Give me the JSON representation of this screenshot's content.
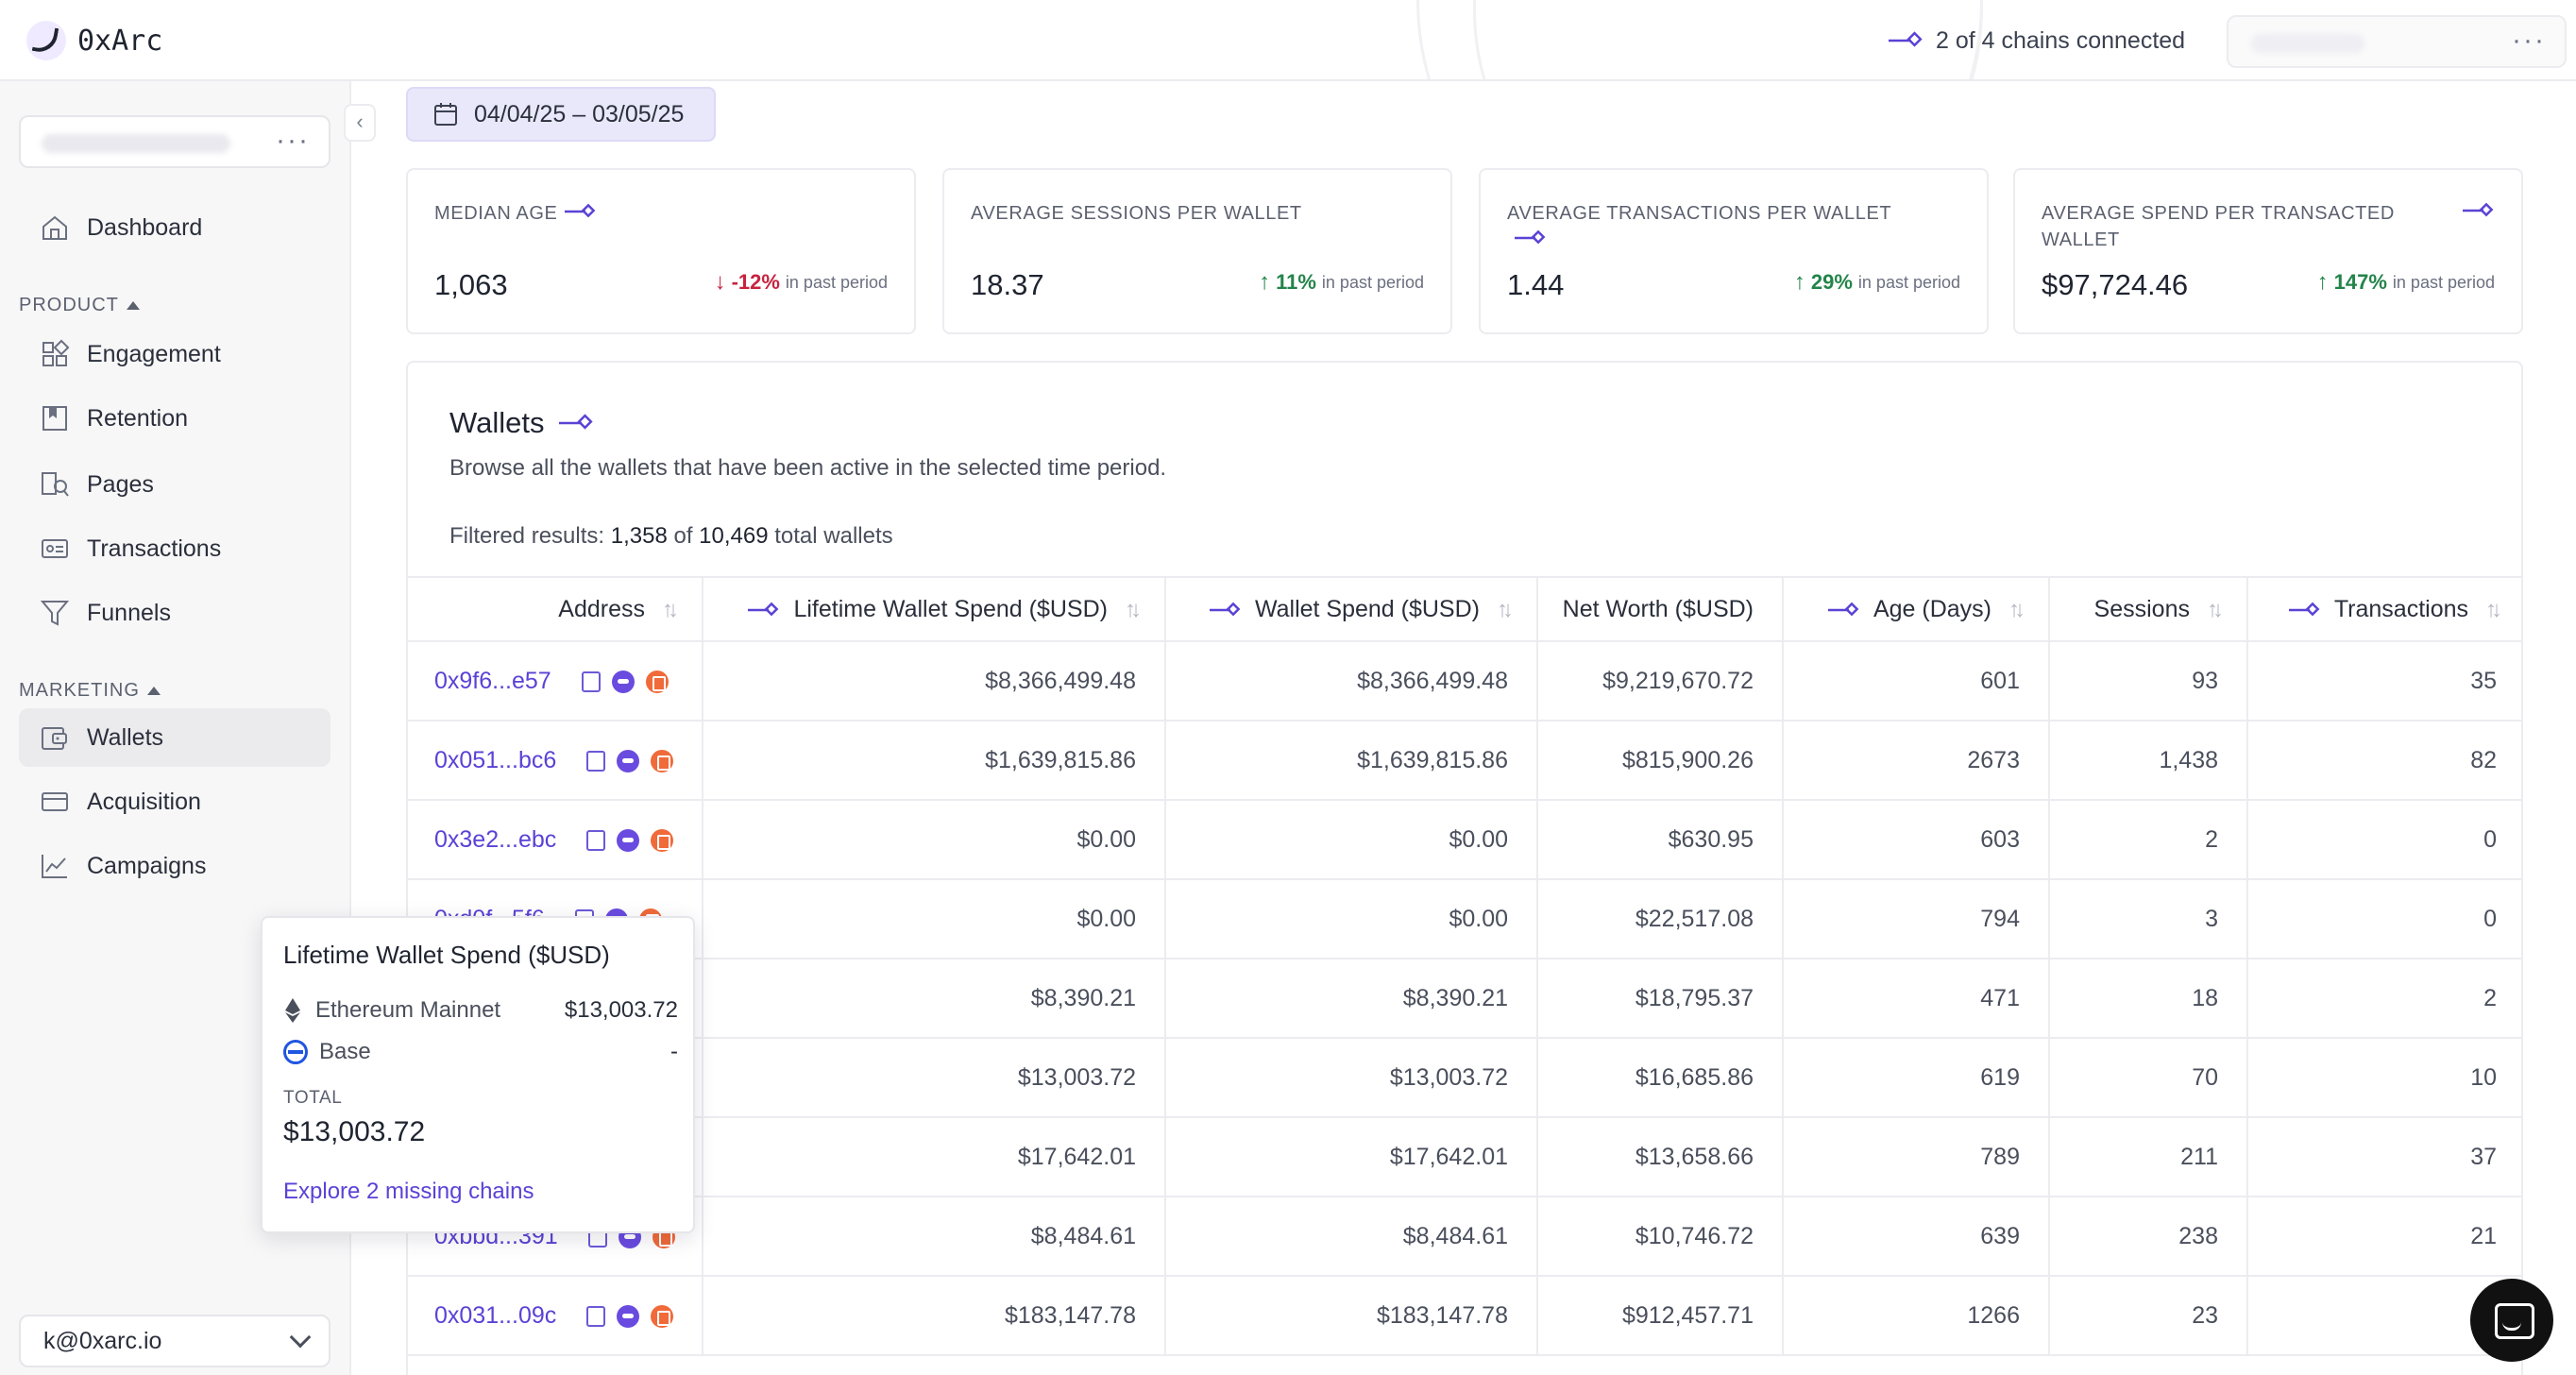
{
  "app": {
    "name": "0xArc"
  },
  "header": {
    "chains_status": "2 of 4 chains connected"
  },
  "sidebar": {
    "items": [
      {
        "label": "Dashboard"
      },
      {
        "label": "Engagement"
      },
      {
        "label": "Retention"
      },
      {
        "label": "Pages"
      },
      {
        "label": "Transactions"
      },
      {
        "label": "Funnels"
      },
      {
        "label": "Wallets"
      },
      {
        "label": "Acquisition"
      },
      {
        "label": "Campaigns"
      }
    ],
    "sections": {
      "product": "PRODUCT",
      "marketing": "MARKETING"
    },
    "active": "Wallets",
    "user_email": "k@0xarc.io"
  },
  "date_range": "04/04/25 – 03/05/25",
  "kpis": [
    {
      "label": "MEDIAN AGE",
      "value": "1,063",
      "delta": "-12%",
      "direction": "down",
      "suffix": "in past period"
    },
    {
      "label": "AVERAGE SESSIONS PER WALLET",
      "value": "18.37",
      "delta": "11%",
      "direction": "up",
      "suffix": "in past period"
    },
    {
      "label": "AVERAGE TRANSACTIONS PER WALLET",
      "value": "1.44",
      "delta": "29%",
      "direction": "up",
      "suffix": "in past period"
    },
    {
      "label": "AVERAGE SPEND PER TRANSACTED WALLET",
      "value": "$97,724.46",
      "delta": "147%",
      "direction": "up",
      "suffix": "in past period"
    }
  ],
  "wallets": {
    "title": "Wallets",
    "description": "Browse all the wallets that have been active in the selected time period.",
    "filter_prefix": "Filtered results:",
    "filtered_count": "1,358",
    "filter_of": "of",
    "total_count": "10,469",
    "filter_suffix": "total wallets",
    "columns": [
      "Address",
      "Lifetime Wallet Spend ($USD)",
      "Wallet Spend ($USD)",
      "Net Worth ($USD)",
      "Age (Days)",
      "Sessions",
      "Transactions"
    ],
    "rows": [
      {
        "address": "0x9f6...e57",
        "lifetime": "$8,366,499.48",
        "spend": "$8,366,499.48",
        "networth": "$9,219,670.72",
        "age": "601",
        "sessions": "93",
        "tx": "35"
      },
      {
        "address": "0x051...bc6",
        "lifetime": "$1,639,815.86",
        "spend": "$1,639,815.86",
        "networth": "$815,900.26",
        "age": "2673",
        "sessions": "1,438",
        "tx": "82"
      },
      {
        "address": "0x3e2...ebc",
        "lifetime": "$0.00",
        "spend": "$0.00",
        "networth": "$630.95",
        "age": "603",
        "sessions": "2",
        "tx": "0"
      },
      {
        "address": "0xd0f...5f6",
        "lifetime": "$0.00",
        "spend": "$0.00",
        "networth": "$22,517.08",
        "age": "794",
        "sessions": "3",
        "tx": "0"
      },
      {
        "address": "",
        "lifetime": "$8,390.21",
        "spend": "$8,390.21",
        "networth": "$18,795.37",
        "age": "471",
        "sessions": "18",
        "tx": "2"
      },
      {
        "address": "",
        "lifetime": "$13,003.72",
        "spend": "$13,003.72",
        "networth": "$16,685.86",
        "age": "619",
        "sessions": "70",
        "tx": "10"
      },
      {
        "address": "",
        "lifetime": "$17,642.01",
        "spend": "$17,642.01",
        "networth": "$13,658.66",
        "age": "789",
        "sessions": "211",
        "tx": "37"
      },
      {
        "address": "0xbbd...391",
        "lifetime": "$8,484.61",
        "spend": "$8,484.61",
        "networth": "$10,746.72",
        "age": "639",
        "sessions": "238",
        "tx": "21"
      },
      {
        "address": "0x031...09c",
        "lifetime": "$183,147.78",
        "spend": "$183,147.78",
        "networth": "$912,457.71",
        "age": "1266",
        "sessions": "23",
        "tx": ""
      }
    ]
  },
  "tooltip": {
    "title": "Lifetime Wallet Spend ($USD)",
    "rows": [
      {
        "chain": "Ethereum Mainnet",
        "value": "$13,003.72"
      },
      {
        "chain": "Base",
        "value": "-"
      }
    ],
    "total_label": "TOTAL",
    "total_value": "$13,003.72",
    "link": "Explore 2 missing chains"
  },
  "colors": {
    "accent": "#5a42d6",
    "up": "#23844a",
    "down": "#c8223f"
  }
}
